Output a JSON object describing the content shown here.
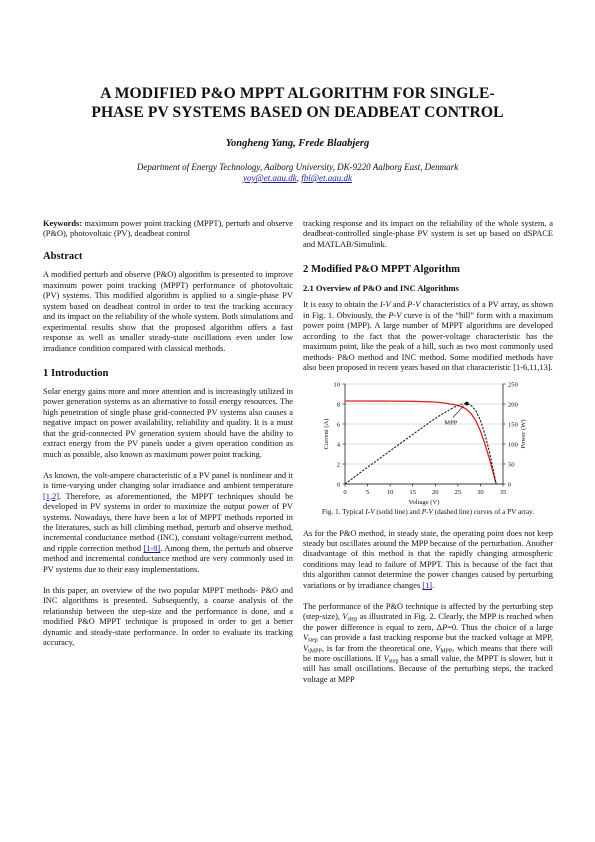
{
  "title_line1": "A MODIFIED P&O MPPT ALGORITHM FOR SINGLE-",
  "title_line2": "PHASE PV SYSTEMS BASED ON DEADBEAT CONTROL",
  "authors": "Yongheng Yang, Frede Blaabjerg",
  "affiliation": "Department of Energy Technology, Aalborg University, DK-9220 Aalborg East, Denmark",
  "email1": "yoy@et.aau.dk",
  "email_sep": ", ",
  "email2": "fbl@et.aau.dk",
  "keywords": {
    "label": "Keywords:",
    "text": " maximum power point tracking (MPPT), perturb and observe (P&O), photovoltaic (PV), deadbeat control"
  },
  "abstract": {
    "heading": "Abstract",
    "text": "A modified perturb and observe (P&O) algorithm is presented to improve maximum power point tracking (MPPT) performance of photovoltaic (PV) systems. This modified algorithm is applied to a single-phase PV system based on deadbeat control in order to test the tracking accuracy and its impact on the reliability of the whole system. Both simulations and experimental results show that the proposed algorithm offers a fast response as well as smaller steady-state oscillations even under low irradiance condition compared with classical methods."
  },
  "intro": {
    "heading": "1   Introduction",
    "p1": "Solar energy gains more and more attention and is increasingly utilized in power generation systems as an alternative to fossil energy resources. The high penetration of single phase grid-connected PV systems also causes a negative impact on power availability, reliability and quality. It is a must that the grid-connected PV generation system should have the ability to extract energy from the PV panels under a given operation condition as much as possible, also known as maximum power point tracking.",
    "p2a": "As known, the volt-ampere characteristic of a PV panel is nonlinear and it is time-varying under changing solar irradiance and ambient temperature ",
    "p2ref1": "[1,2]",
    "p2b": ". Therefore, as aforementioned, the MPPT techniques should be developed in PV systems in order to maximize the output power of PV systems. Nowadays, there have been a lot of MPPT methods reported in the literatures, such as hill climbing method, perturb and observe method, incremental conductance method (INC), constant voltage/current method, and ripple correction method ",
    "p2ref2": "[1-8]",
    "p2c": ". Among them, the perturb and observe method and incremental conductance method are very commonly used in PV systems due to their easy implementations.",
    "p3": "In this paper, an overview of the two popular MPPT methods- P&O and INC algorithms is presented. Subsequently, a coarse analysis of the relationship between the step-size and the performance is done, and a modified P&O MPPT technique is proposed in order to get a better dynamic and steady-state performance. In order to evaluate its tracking accuracy,"
  },
  "right": {
    "p0": "tracking response and its impact on the reliability of the whole system, a deadbeat-controlled single-phase PV system is set up based on dSPACE and MATLAB/Simulink.",
    "sec2_heading": "2   Modified P&O MPPT Algorithm",
    "sub21_heading": "2.1 Overview of P&O and INC Algorithms",
    "p1a": "It is easy to obtain the ",
    "iv": "I-V",
    "p1b": " and ",
    "pv": "P-V",
    "p1c": " characteristics of a PV array, as shown in Fig. 1. Obviously, the ",
    "p1d": " curve is of the “hill” form with a maximum power point (MPP). A large number of MPPT algorithms are developed according to the fact that the power-voltage characteristic has the maximum point, like the peak of a hill, such as two most commonly used methods- P&O method and INC method. Some modified methods have also been proposed in recent years based on that characteristic [1-6,11,13].",
    "caption_a": "Fig. 1. Typical ",
    "caption_b": " (solid line) and ",
    "caption_c": " (dashed line) curves of a PV array.",
    "p2a": "As for the P&O method, in steady state, the operating point does not keep steady but oscillates around the MPP because of the perturbation. Another disadvantage of this method is that the rapidly changing atmospheric conditions may lead to failure of MPPT. This is because of the fact that this algorithm cannot determine the power changes caused by perturbing variations or by irradiance changes ",
    "p2ref": "[1]",
    "p2b": ".",
    "p3a": "The performance of the P&O technique is affected by the perturbing step (step-size), ",
    "v": "V",
    "step_sub": "step",
    "p3b": " as illustrated in Fig. 2. Clearly, the MPP is reached when the power difference is equal to zero, Δ",
    "p_it": "P",
    "p3c": "=0. Thus the choice of a large ",
    "p3d": " can provide a fast tracking response but the tracked voltage at MPP, ",
    "tmpp_sub": "tMPP",
    "p3e": ", is far from the theoretical one, ",
    "mpp_sub": "MPP",
    "p3f": ", which means that there will be more oscillations. If ",
    "p3g": " has a small value, the MPPT is slower, but it still has small oscillations. Because of the perturbing steps, the tracked voltage at MPP"
  },
  "chart_data": {
    "type": "line",
    "x": [
      0,
      5,
      10,
      15,
      20,
      22,
      24,
      25,
      26,
      27,
      28,
      29,
      30,
      31,
      32,
      33,
      33.5
    ],
    "series": [
      {
        "values": [
          8.3,
          8.3,
          8.29,
          8.27,
          8.2,
          8.1,
          7.95,
          7.85,
          7.7,
          7.45,
          7.0,
          6.3,
          5.3,
          4.0,
          2.5,
          0.8,
          0
        ]
      },
      {
        "values": [
          0,
          42,
          83,
          124,
          164,
          178,
          191,
          196,
          200,
          201,
          196,
          183,
          159,
          124,
          80,
          26,
          0
        ]
      }
    ],
    "xlabel": "Voltage (V)",
    "ylabel_left": "Current (A)",
    "ylabel_right": "Power (W)",
    "xlim": [
      0,
      35
    ],
    "ylim_left": [
      0,
      10
    ],
    "ylim_right": [
      0,
      250
    ],
    "x_ticks": [
      "0",
      "5",
      "10",
      "15",
      "20",
      "25",
      "30",
      "35"
    ],
    "y_ticks_left": [
      "0",
      "2",
      "4",
      "6",
      "8",
      "10"
    ],
    "y_ticks_right": [
      "0",
      "50",
      "100",
      "150",
      "200",
      "250"
    ],
    "annotation": "MPP",
    "grid": true,
    "colors": {
      "iv": "#e02020",
      "pv": "#1a1a1a",
      "grid": "#bbbbbb"
    }
  }
}
